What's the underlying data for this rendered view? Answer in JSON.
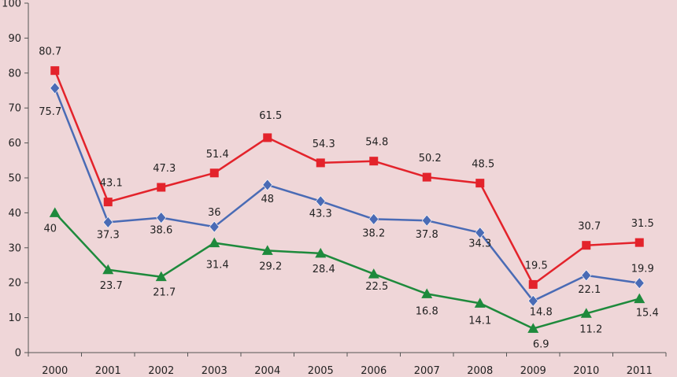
{
  "chart_data": {
    "type": "line",
    "categories": [
      "2000",
      "2001",
      "2002",
      "2003",
      "2004",
      "2005",
      "2006",
      "2007",
      "2008",
      "2009",
      "2010",
      "2011"
    ],
    "ylim": [
      0,
      100
    ],
    "y_ticks": [
      "0",
      "10",
      "20",
      "30",
      "40",
      "50",
      "60",
      "70",
      "80",
      "90",
      "100"
    ],
    "grid": false,
    "legend": "none",
    "series": [
      {
        "color": "#e3232b",
        "marker": "square",
        "values": [
          80.7,
          43.1,
          47.3,
          51.4,
          61.5,
          54.3,
          54.8,
          50.2,
          48.5,
          19.5,
          30.7,
          31.5
        ],
        "labels": [
          "80.7",
          "43.1",
          "47.3",
          "51.4",
          "61.5",
          "54.3",
          "54.8",
          "50.2",
          "48.5",
          "19.5",
          "30.7",
          "31.5"
        ]
      },
      {
        "color": "#4a6bb5",
        "marker": "diamond",
        "values": [
          75.7,
          37.3,
          38.6,
          36,
          48,
          43.3,
          38.2,
          37.8,
          34.3,
          14.8,
          22.1,
          19.9
        ],
        "labels": [
          "75.7",
          "37.3",
          "38.6",
          "36",
          "48",
          "43.3",
          "38.2",
          "37.8",
          "34.3",
          "14.8",
          "22.1",
          "19.9"
        ]
      },
      {
        "color": "#1e8a3c",
        "marker": "triangle",
        "values": [
          40,
          23.7,
          21.7,
          31.4,
          29.2,
          28.4,
          22.5,
          16.8,
          14.1,
          6.9,
          11.2,
          15.4
        ],
        "labels": [
          "40",
          "23.7",
          "21.7",
          "31.4",
          "29.2",
          "28.4",
          "22.5",
          "16.8",
          "14.1",
          "6.9",
          "11.2",
          "15.4"
        ]
      }
    ]
  }
}
